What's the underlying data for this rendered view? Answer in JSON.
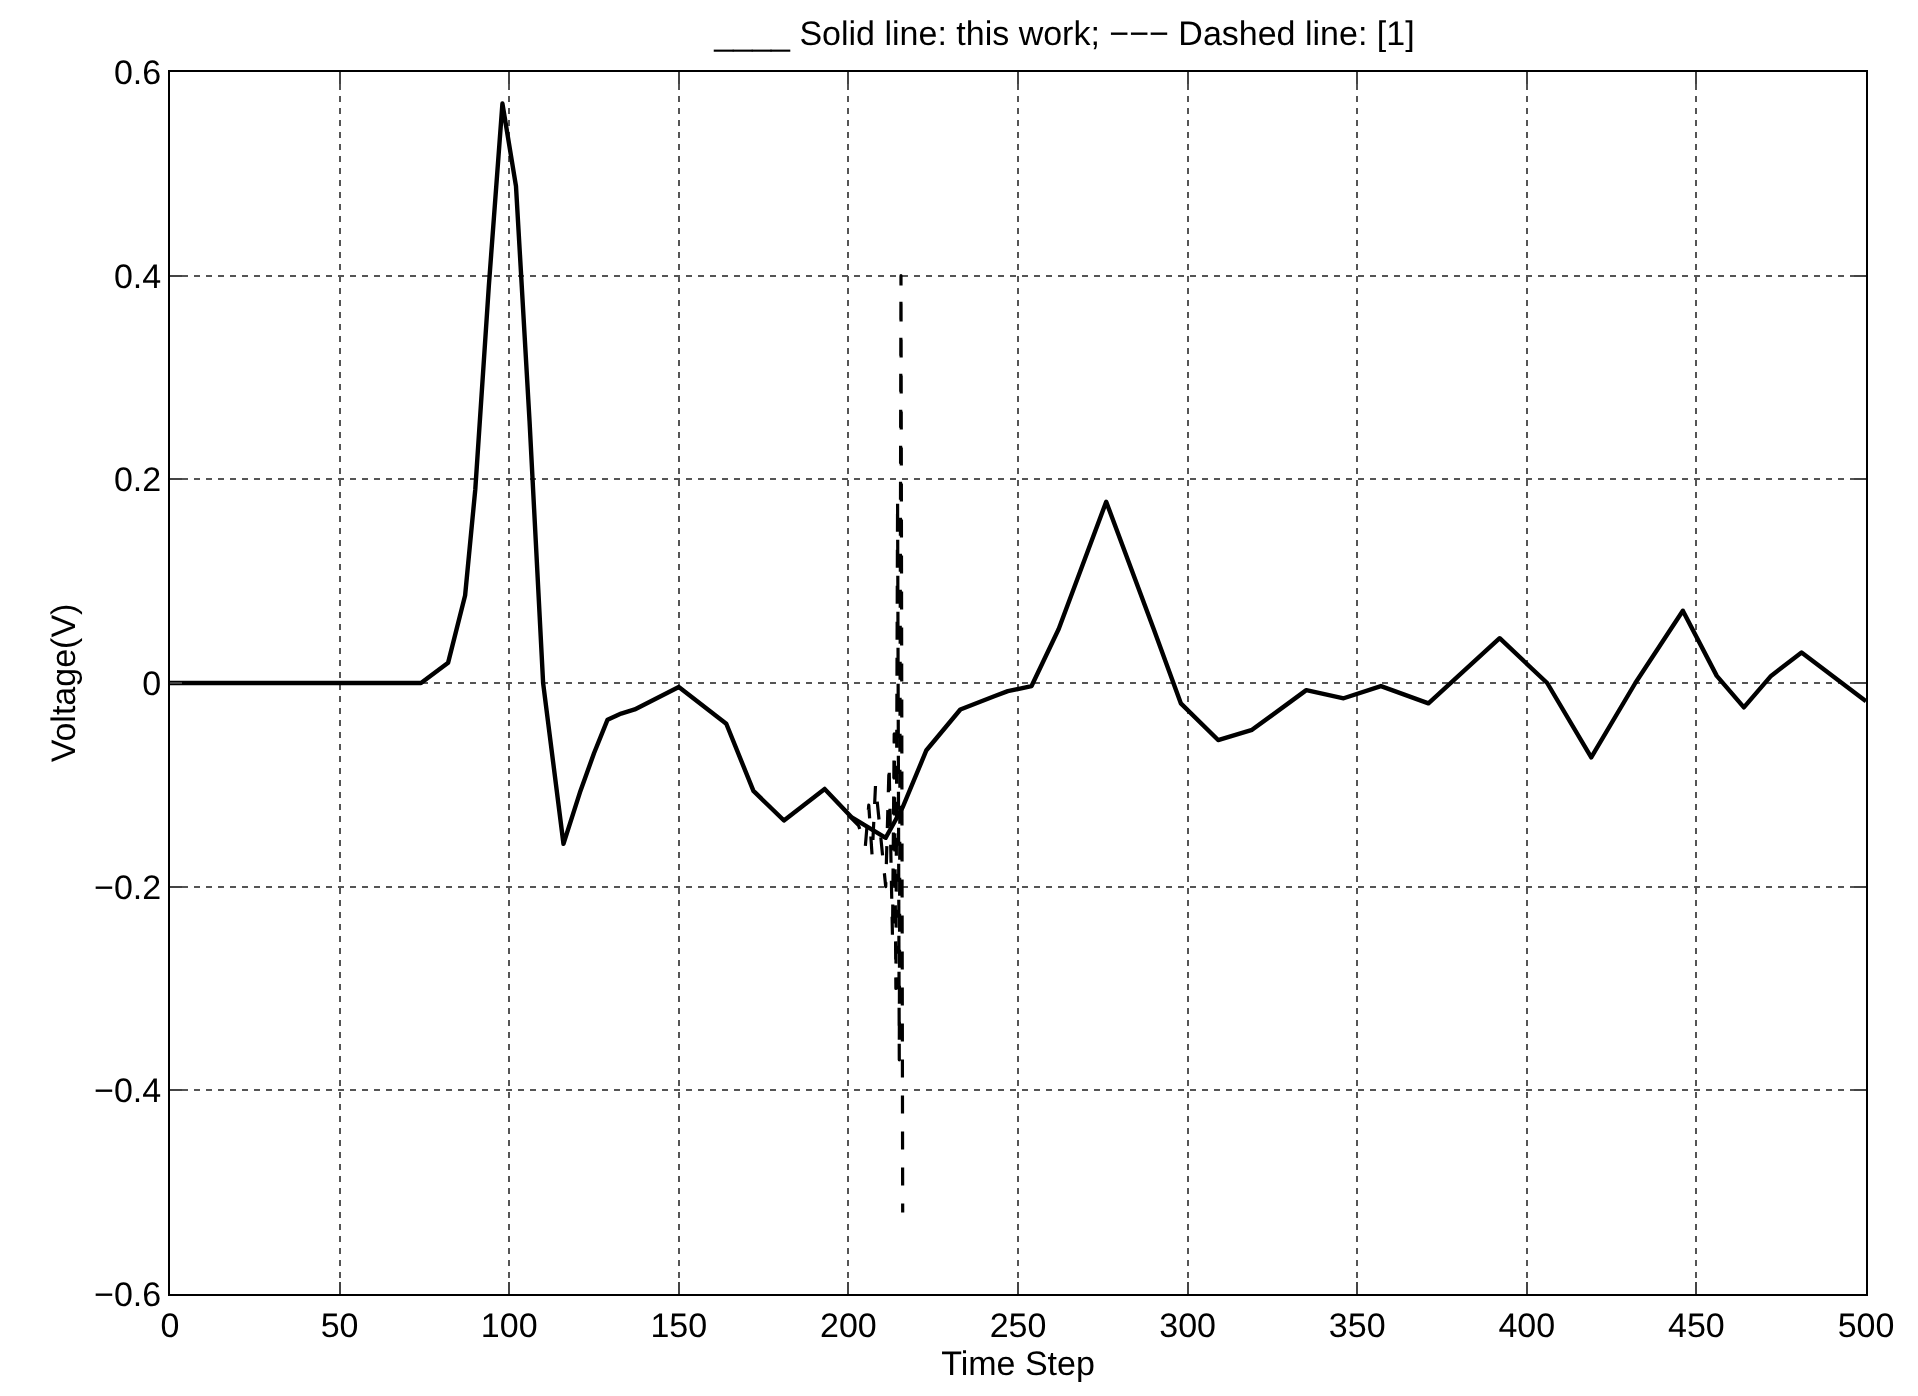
{
  "chart_data": {
    "type": "line",
    "title": "____ Solid line: this work; −−− Dashed line: [1]",
    "xlabel": "Time Step",
    "ylabel": "Voltage(V)",
    "xlim": [
      0,
      500
    ],
    "ylim": [
      -0.6,
      0.6
    ],
    "xticks": [
      0,
      50,
      100,
      150,
      200,
      250,
      300,
      350,
      400,
      450,
      500
    ],
    "yticks": [
      -0.6,
      -0.4,
      -0.2,
      0,
      0.2,
      0.4,
      0.6
    ],
    "grid": true,
    "series": [
      {
        "color": "#000000",
        "line_style": "solid",
        "x": [
          0,
          74,
          82,
          87,
          90,
          94,
          98,
          102,
          106,
          110,
          116,
          121,
          125,
          129,
          133,
          137,
          150,
          164,
          172,
          181,
          193,
          201,
          211,
          216,
          223,
          233,
          243,
          247,
          254,
          262,
          276,
          290,
          298,
          309,
          319,
          335,
          346,
          357,
          371,
          392,
          406,
          419,
          432,
          446,
          456,
          464,
          472,
          481,
          500
        ],
        "values": [
          0,
          0,
          0.02,
          0.086,
          0.19,
          0.39,
          0.569,
          0.488,
          0.257,
          0,
          -0.158,
          -0.106,
          -0.069,
          -0.036,
          -0.03,
          -0.026,
          -0.004,
          -0.04,
          -0.106,
          -0.135,
          -0.104,
          -0.132,
          -0.152,
          -0.122,
          -0.066,
          -0.026,
          -0.013,
          -0.008,
          -0.003,
          0.053,
          0.178,
          0.053,
          -0.02,
          -0.056,
          -0.046,
          -0.007,
          -0.015,
          -0.003,
          -0.02,
          0.044,
          0,
          -0.073,
          0,
          0.071,
          0.007,
          -0.024,
          0.007,
          0.03,
          -0.018
        ]
      },
      {
        "color": "#000000",
        "line_style": "dashed",
        "x": [
          200,
          203,
          205,
          206,
          207,
          208,
          211,
          212,
          213,
          213.5,
          214,
          214.5,
          215,
          215.5,
          216
        ],
        "values": [
          -0.13,
          -0.14,
          -0.16,
          -0.12,
          -0.17,
          -0.1,
          -0.2,
          -0.08,
          -0.25,
          -0.05,
          -0.3,
          0.18,
          -0.37,
          0.4,
          -0.52
        ]
      }
    ]
  }
}
